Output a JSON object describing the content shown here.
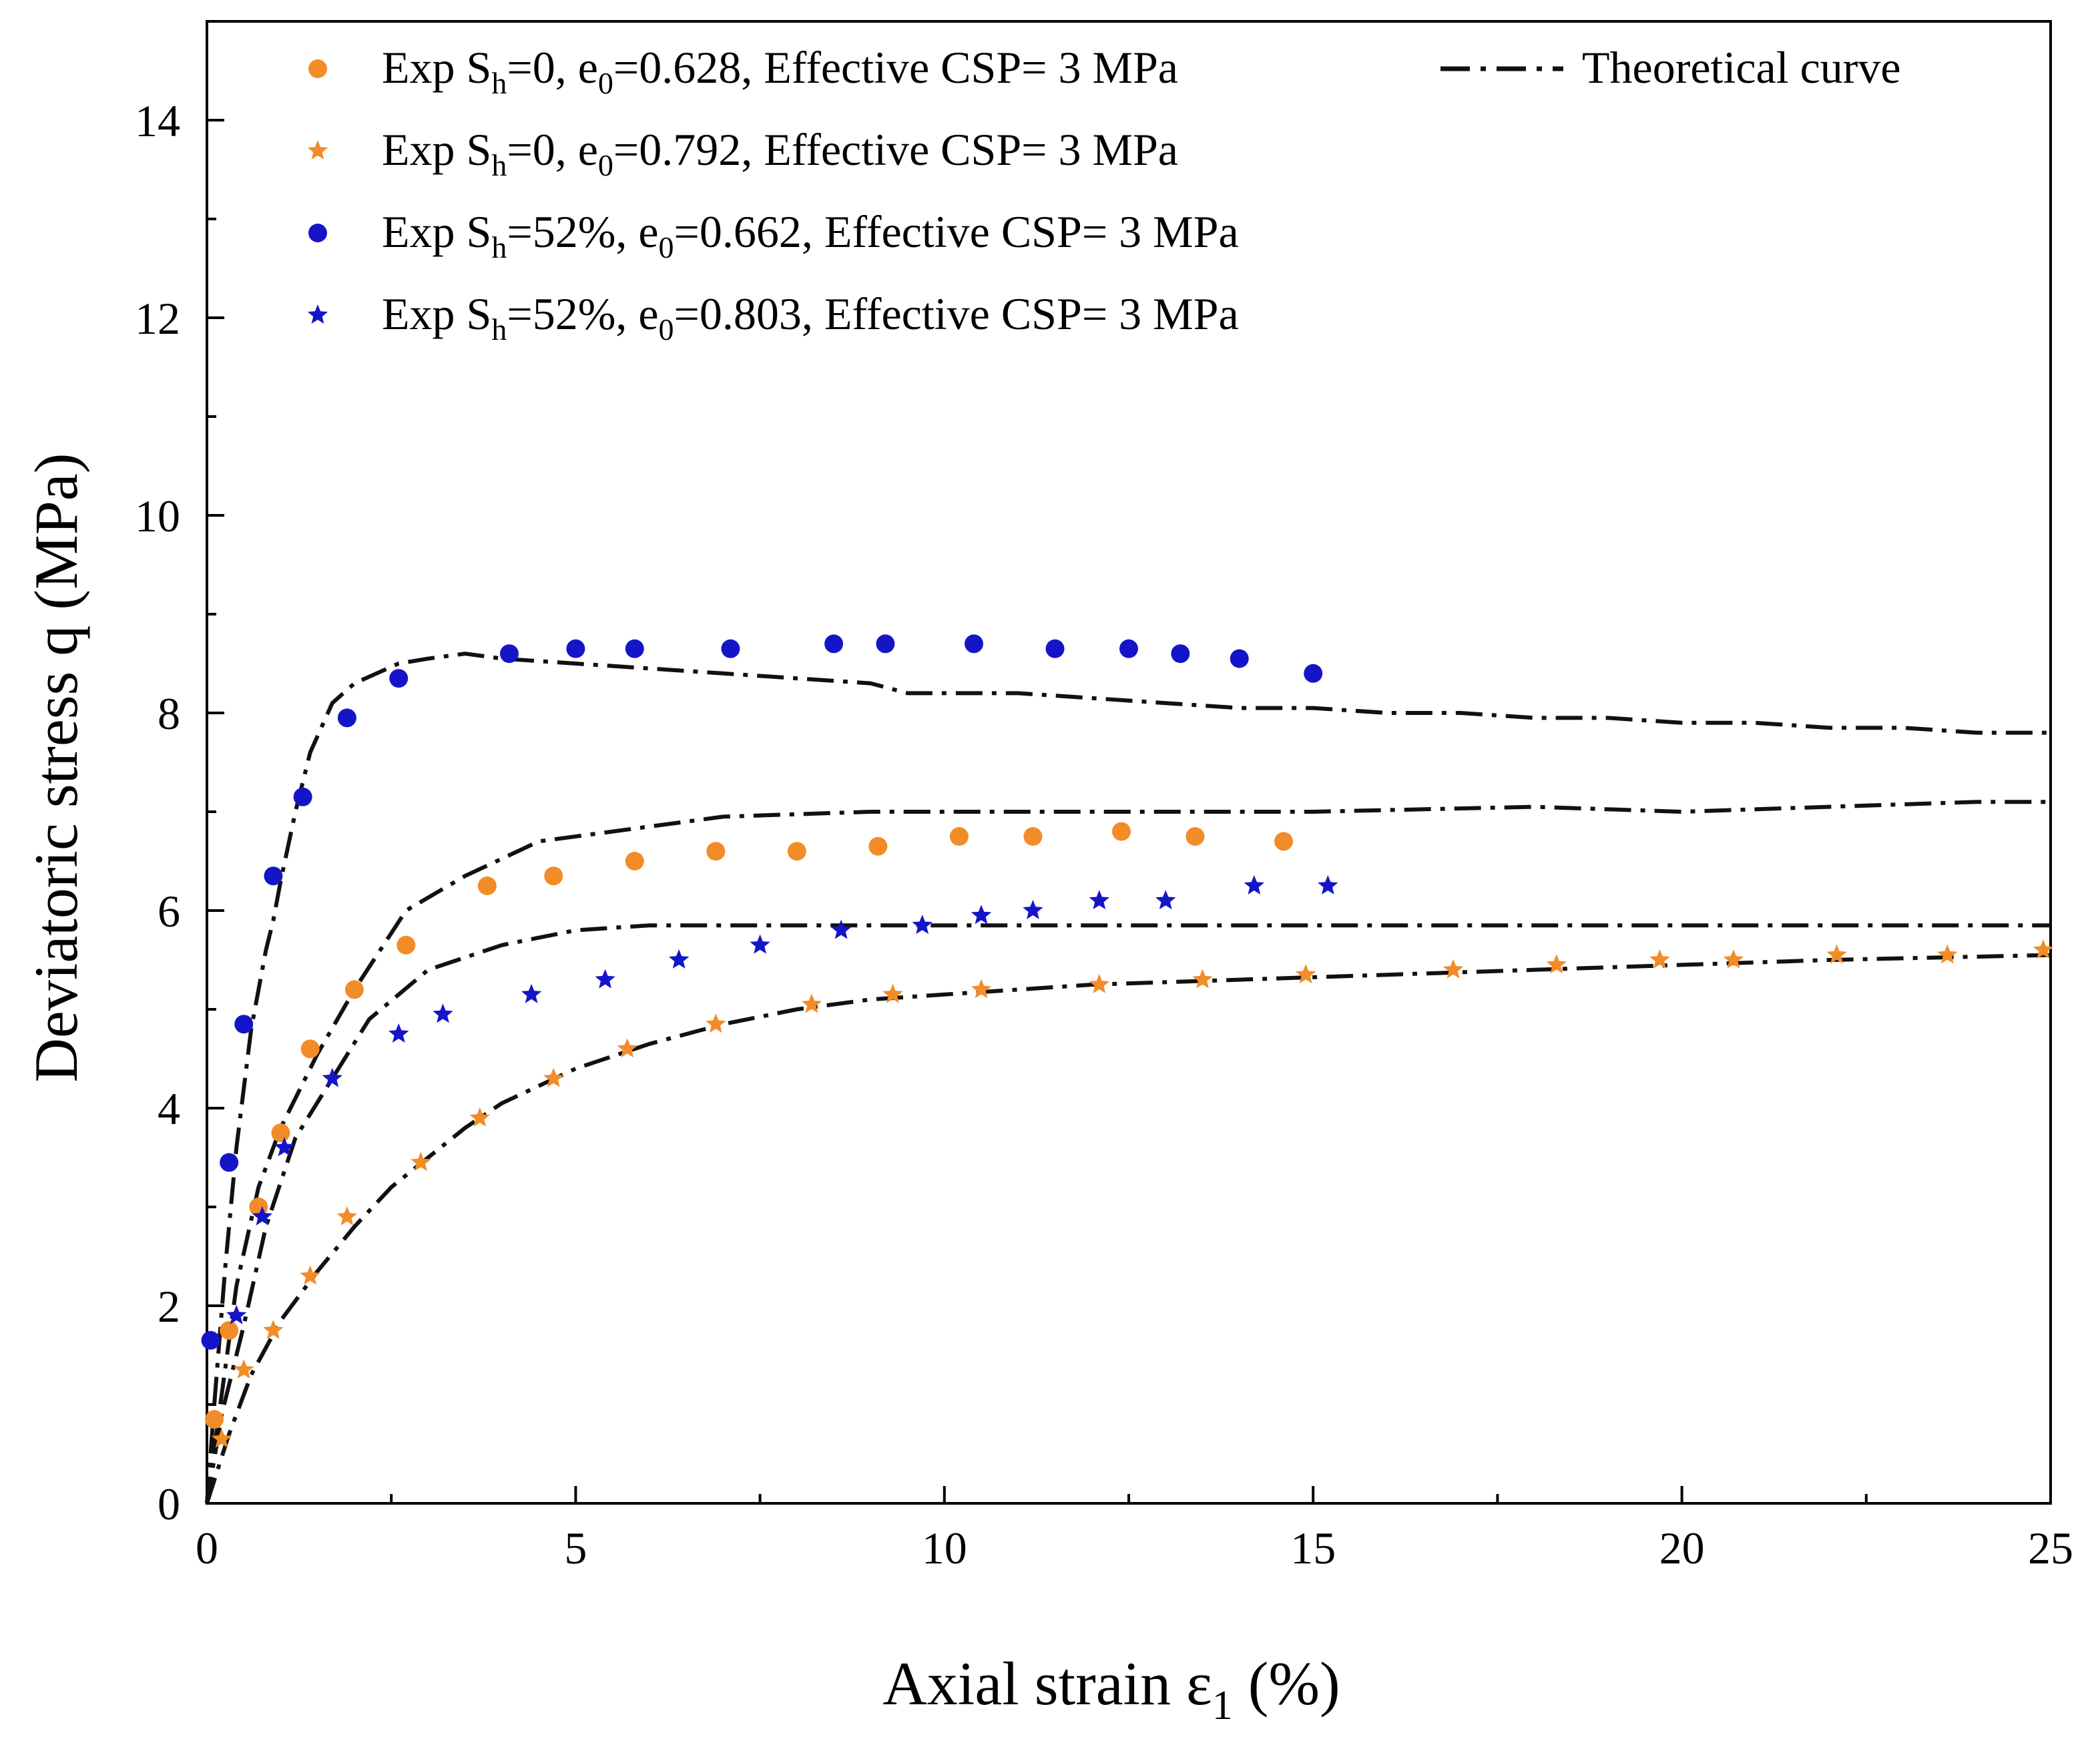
{
  "chart_data": {
    "type": "scatter",
    "xlabel": {
      "main": "Axial strain ε",
      "sub": "1",
      "tail": " (%)"
    },
    "ylabel": "Deviatoric stress q (MPa)",
    "xlim": [
      0,
      25
    ],
    "ylim": [
      0,
      15
    ],
    "x_ticks": [
      0,
      5,
      10,
      15,
      20,
      25
    ],
    "y_ticks": [
      0,
      2,
      4,
      6,
      8,
      10,
      12,
      14
    ],
    "grid": false,
    "legend_position": "top",
    "series": [
      {
        "name": "Exp Sh=0, e0=0.628, Effective CSP= 3 MPa",
        "label_parts": [
          "Exp S",
          "h",
          "=0, e",
          "0",
          "=0.628, Effective CSP= 3 MPa"
        ],
        "marker": "circle",
        "color": "#F28C28",
        "x": [
          0.1,
          0.3,
          0.7,
          1.0,
          1.4,
          2.0,
          2.7,
          3.8,
          4.7,
          5.8,
          6.9,
          8.0,
          9.1,
          10.2,
          11.2,
          12.4,
          13.4,
          14.6
        ],
        "y": [
          0.85,
          1.75,
          3.0,
          3.75,
          4.6,
          5.2,
          5.65,
          6.25,
          6.35,
          6.5,
          6.6,
          6.6,
          6.65,
          6.75,
          6.75,
          6.8,
          6.75,
          6.7
        ]
      },
      {
        "name": "Exp Sh=0, e0=0.792, Effective CSP= 3 MPa",
        "label_parts": [
          "Exp S",
          "h",
          "=0, e",
          "0",
          "=0.792, Effective CSP= 3 MPa"
        ],
        "marker": "star",
        "color": "#F28C28",
        "x": [
          0.2,
          0.5,
          0.9,
          1.4,
          1.9,
          2.9,
          3.7,
          4.7,
          5.7,
          6.9,
          8.2,
          9.3,
          10.5,
          12.1,
          13.5,
          14.9,
          16.9,
          18.3,
          19.7,
          20.7,
          22.1,
          23.6,
          24.9
        ],
        "y": [
          0.65,
          1.35,
          1.75,
          2.3,
          2.9,
          3.45,
          3.9,
          4.3,
          4.6,
          4.85,
          5.05,
          5.15,
          5.2,
          5.25,
          5.3,
          5.35,
          5.4,
          5.45,
          5.5,
          5.5,
          5.55,
          5.55,
          5.6
        ]
      },
      {
        "name": "Exp Sh=52%, e0=0.662, Effective CSP= 3 MPa",
        "label_parts": [
          "Exp S",
          "h",
          "=52%, e",
          "0",
          "=0.662, Effective CSP= 3 MPa"
        ],
        "marker": "circle",
        "color": "#1515C8",
        "x": [
          0.05,
          0.3,
          0.5,
          0.9,
          1.3,
          1.9,
          2.6,
          4.1,
          5.0,
          5.8,
          7.1,
          8.5,
          9.2,
          10.4,
          11.5,
          12.5,
          13.2,
          14.0,
          15.0
        ],
        "y": [
          1.65,
          3.45,
          4.85,
          6.35,
          7.15,
          7.95,
          8.35,
          8.6,
          8.65,
          8.65,
          8.65,
          8.7,
          8.7,
          8.7,
          8.65,
          8.65,
          8.6,
          8.55,
          8.4
        ]
      },
      {
        "name": "Exp Sh=52%, e0=0.803, Effective CSP= 3 MPa",
        "label_parts": [
          "Exp S",
          "h",
          "=52%, e",
          "0",
          "=0.803, Effective CSP= 3 MPa"
        ],
        "marker": "star",
        "color": "#1515C8",
        "x": [
          0.4,
          0.75,
          1.05,
          1.7,
          2.6,
          3.2,
          4.4,
          5.4,
          6.4,
          7.5,
          8.6,
          9.7,
          10.5,
          11.2,
          12.1,
          13.0,
          14.2,
          15.2
        ],
        "y": [
          1.9,
          2.9,
          3.6,
          4.3,
          4.75,
          4.95,
          5.15,
          5.3,
          5.5,
          5.65,
          5.8,
          5.85,
          5.95,
          6.0,
          6.1,
          6.1,
          6.25,
          6.25
        ]
      },
      {
        "name": "Theoretical curve",
        "marker": "none",
        "line": "dash-dot",
        "color": "#111111",
        "curves": [
          {
            "x": [
              0,
              0.1,
              0.25,
              0.4,
              0.6,
              0.8,
              0.9,
              1.0,
              1.2,
              1.4,
              1.7,
              2.0,
              2.6,
              3.0,
              3.5,
              4.0,
              5.0,
              6.0,
              7.0,
              8.0,
              9.0,
              9.5,
              10.0,
              11.0,
              12.0,
              13.0,
              14.0,
              15.0,
              16.0,
              17.0,
              18.0,
              19.0,
              20.0,
              21.0,
              22.0,
              23.0,
              24.0,
              25.0
            ],
            "y": [
              0,
              1.0,
              2.4,
              3.6,
              4.8,
              5.6,
              5.9,
              6.3,
              7.0,
              7.6,
              8.1,
              8.3,
              8.5,
              8.55,
              8.6,
              8.55,
              8.5,
              8.45,
              8.4,
              8.35,
              8.3,
              8.2,
              8.2,
              8.2,
              8.15,
              8.1,
              8.05,
              8.05,
              8.0,
              8.0,
              7.95,
              7.95,
              7.9,
              7.9,
              7.85,
              7.85,
              7.8,
              7.8
            ]
          },
          {
            "x": [
              0,
              0.2,
              0.4,
              0.7,
              1.0,
              1.5,
              2.0,
              2.7,
              3.5,
              4.5,
              5.5,
              7.0,
              9.0,
              11.0,
              13.0,
              15.0,
              18.0,
              20.0,
              22.0,
              24.0,
              25.0
            ],
            "y": [
              0,
              1.1,
              2.2,
              3.2,
              3.8,
              4.55,
              5.2,
              6.0,
              6.35,
              6.7,
              6.8,
              6.95,
              7.0,
              7.0,
              7.0,
              7.0,
              7.05,
              7.0,
              7.05,
              7.1,
              7.1
            ]
          },
          {
            "x": [
              0,
              0.2,
              0.5,
              0.8,
              1.2,
              1.7,
              2.2,
              3.0,
              4.0,
              5.0,
              6.0,
              8.0,
              10.0,
              12.0,
              15.0,
              18.0,
              20.0,
              22.0,
              25.0
            ],
            "y": [
              0,
              0.9,
              1.8,
              2.8,
              3.7,
              4.3,
              4.9,
              5.4,
              5.65,
              5.8,
              5.85,
              5.85,
              5.85,
              5.85,
              5.85,
              5.85,
              5.85,
              5.85,
              5.85
            ]
          },
          {
            "x": [
              0,
              0.3,
              0.6,
              1.0,
              1.5,
              2.0,
              2.5,
              3.0,
              3.5,
              4.0,
              5.0,
              6.0,
              7.0,
              8.0,
              9.0,
              10.0,
              12.0,
              14.0,
              16.0,
              18.0,
              20.0,
              22.0,
              25.0
            ],
            "y": [
              0,
              0.7,
              1.3,
              1.85,
              2.35,
              2.8,
              3.2,
              3.5,
              3.8,
              4.05,
              4.4,
              4.65,
              4.85,
              5.0,
              5.1,
              5.15,
              5.25,
              5.3,
              5.35,
              5.4,
              5.45,
              5.5,
              5.55
            ]
          }
        ]
      }
    ]
  }
}
